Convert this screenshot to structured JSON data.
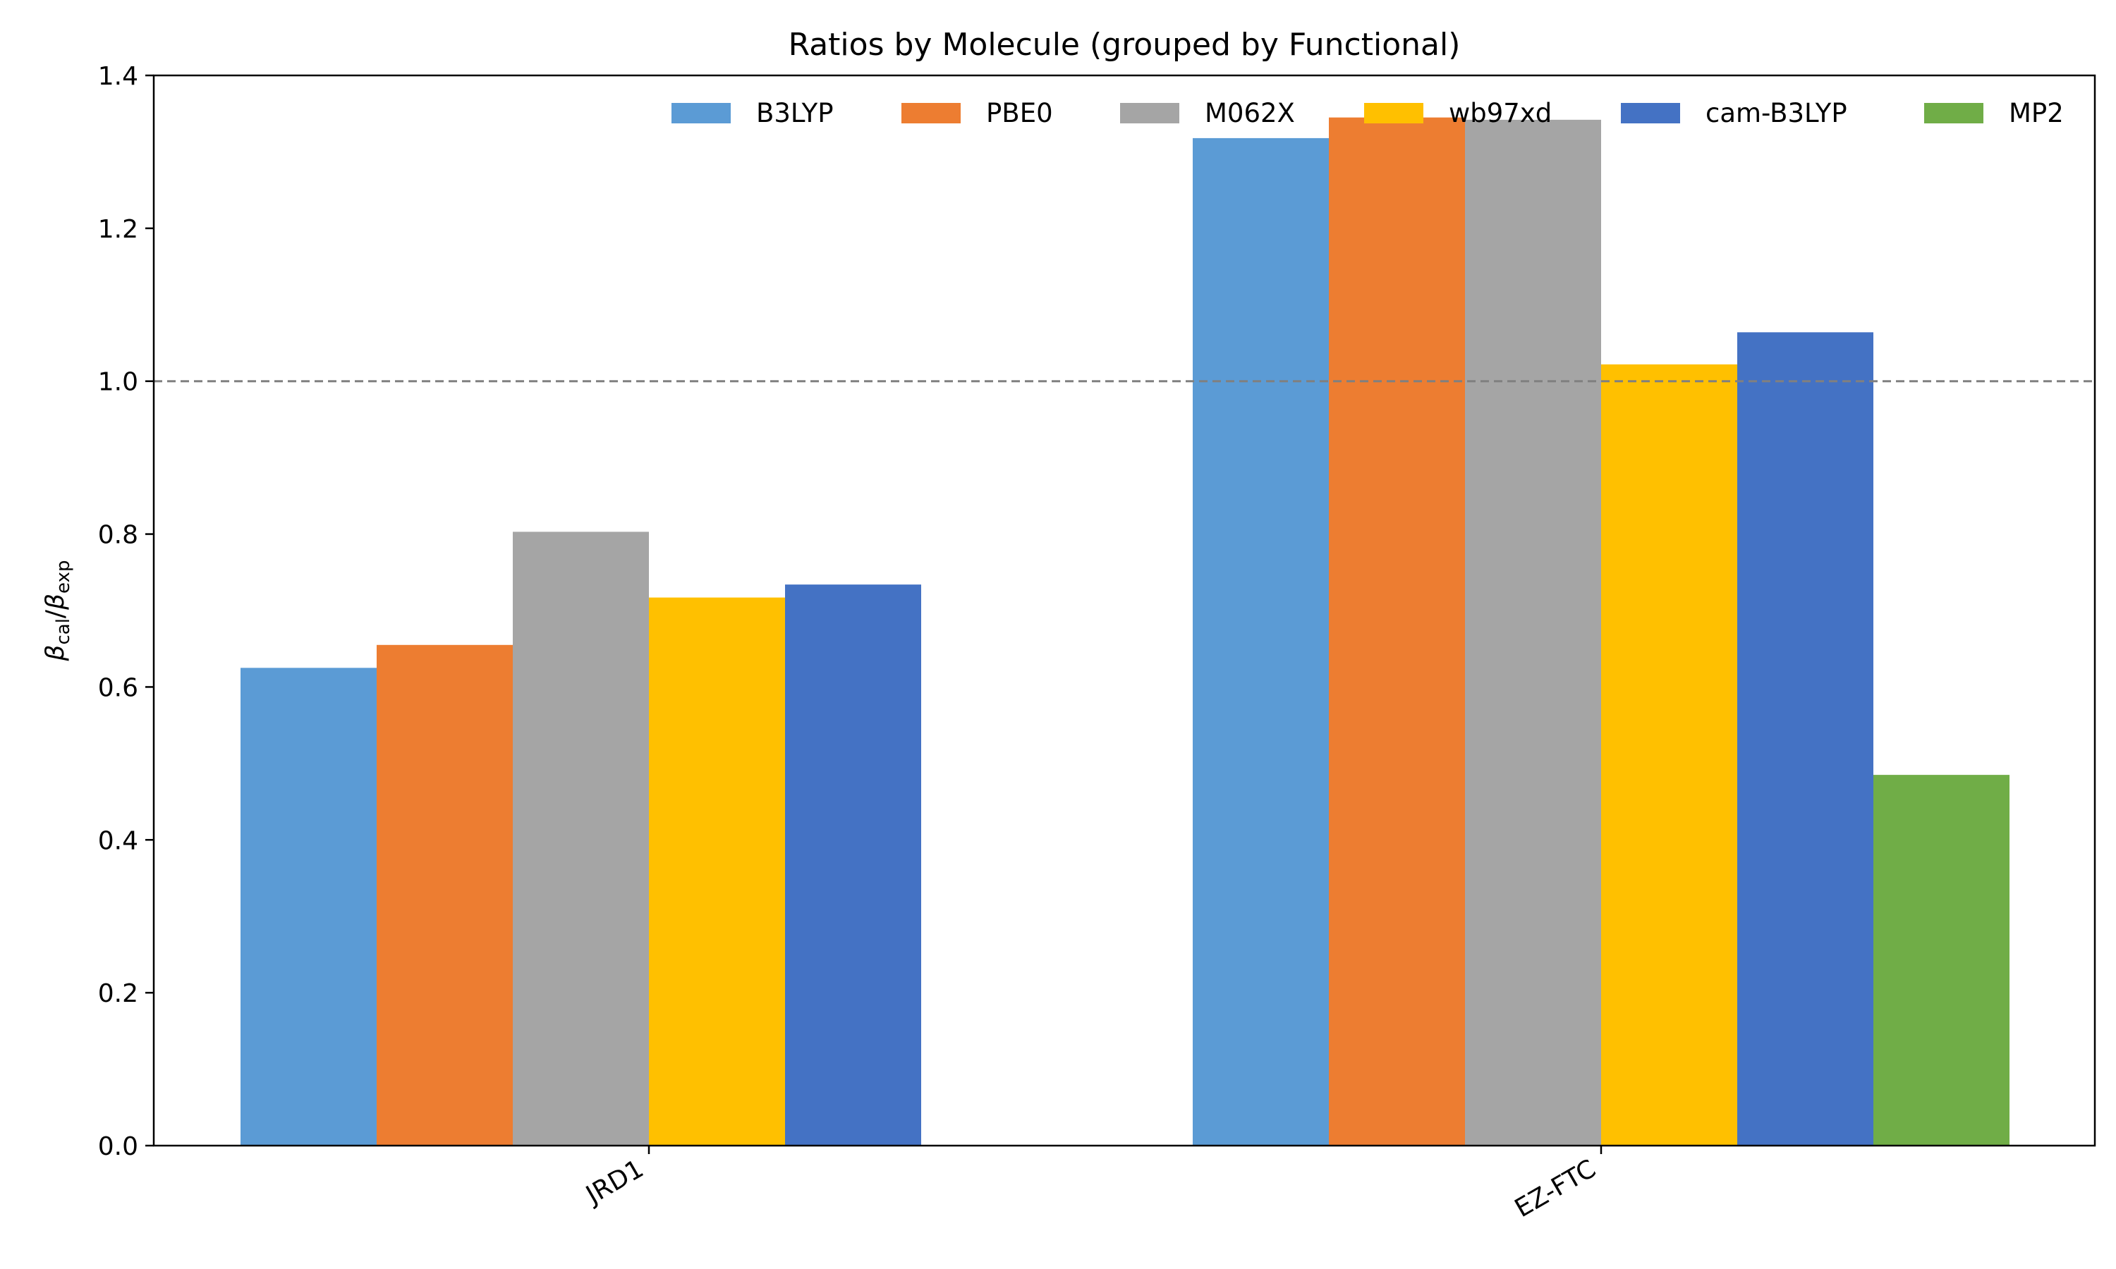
{
  "chart_data": {
    "type": "bar",
    "title": "Ratios by Molecule (grouped by Functional)",
    "ylabel": {
      "base1": "β",
      "sub1": "cal",
      "sep": "/",
      "base2": "β",
      "sub2": "exp"
    },
    "xlabel": "",
    "categories": [
      "JRD1",
      "EZ-FTC"
    ],
    "ylim": [
      0,
      1.4
    ],
    "yticks": [
      "0.0",
      "0.2",
      "0.4",
      "0.6",
      "0.8",
      "1.0",
      "1.2",
      "1.4"
    ],
    "reference_line": {
      "y": 1.0,
      "style": "dashed",
      "color": "#808080"
    },
    "legend_position": "top-right",
    "grid": false,
    "series": [
      {
        "name": "B3LYP",
        "color": "#5B9BD5",
        "values": [
          0.625,
          1.318
        ]
      },
      {
        "name": "PBE0",
        "color": "#ED7D31",
        "values": [
          0.655,
          1.345
        ]
      },
      {
        "name": "M062X",
        "color": "#A5A5A5",
        "values": [
          0.803,
          1.342
        ]
      },
      {
        "name": "wb97xd",
        "color": "#FFC000",
        "values": [
          0.717,
          1.022
        ]
      },
      {
        "name": "cam-B3LYP",
        "color": "#4472C4",
        "values": [
          0.734,
          1.064
        ]
      },
      {
        "name": "MP2",
        "color": "#70AD47",
        "values": [
          null,
          0.485
        ]
      }
    ]
  }
}
